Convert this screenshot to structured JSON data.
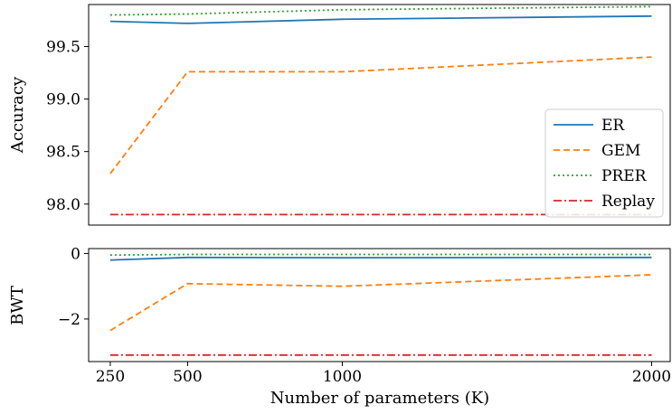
{
  "chart_data": [
    {
      "type": "line",
      "ylabel": "Accuracy",
      "x": [
        250,
        500,
        1000,
        2000
      ],
      "ylim": [
        97.8,
        99.9
      ],
      "yticks": [
        "98.0",
        "98.5",
        "99.0",
        "99.5"
      ],
      "ytick_values": [
        98.0,
        98.5,
        99.0,
        99.5
      ],
      "legend_position": "lower-right",
      "series": [
        {
          "name": "ER",
          "values": [
            99.74,
            99.72,
            99.76,
            99.79
          ],
          "color": "#1f77b4",
          "style": "solid"
        },
        {
          "name": "GEM",
          "values": [
            98.29,
            99.26,
            99.26,
            99.4
          ],
          "color": "#ff7f0e",
          "style": "dashed"
        },
        {
          "name": "PRER",
          "values": [
            99.8,
            99.81,
            99.85,
            99.88
          ],
          "color": "#2ca02c",
          "style": "dotted"
        },
        {
          "name": "Replay",
          "values": [
            97.9,
            97.9,
            97.9,
            97.9
          ],
          "color": "#d62728",
          "style": "dashdot"
        }
      ]
    },
    {
      "type": "line",
      "ylabel": "BWT",
      "xlabel": "Number of parameters (K)",
      "x": [
        250,
        500,
        1000,
        2000
      ],
      "xticks": [
        "250",
        "500",
        "1000",
        "2000"
      ],
      "ylim": [
        -3.3,
        0.15
      ],
      "yticks": [
        "0",
        "−2"
      ],
      "ytick_values": [
        0,
        -2
      ],
      "series": [
        {
          "name": "ER",
          "values": [
            -0.2,
            -0.12,
            -0.13,
            -0.12
          ],
          "color": "#1f77b4",
          "style": "solid"
        },
        {
          "name": "GEM",
          "values": [
            -2.35,
            -0.92,
            -1.0,
            -0.65
          ],
          "color": "#ff7f0e",
          "style": "dashed"
        },
        {
          "name": "PRER",
          "values": [
            -0.05,
            -0.03,
            -0.03,
            -0.03
          ],
          "color": "#2ca02c",
          "style": "dotted"
        },
        {
          "name": "Replay",
          "values": [
            -3.1,
            -3.1,
            -3.1,
            -3.1
          ],
          "color": "#d62728",
          "style": "dashdot"
        }
      ]
    }
  ]
}
